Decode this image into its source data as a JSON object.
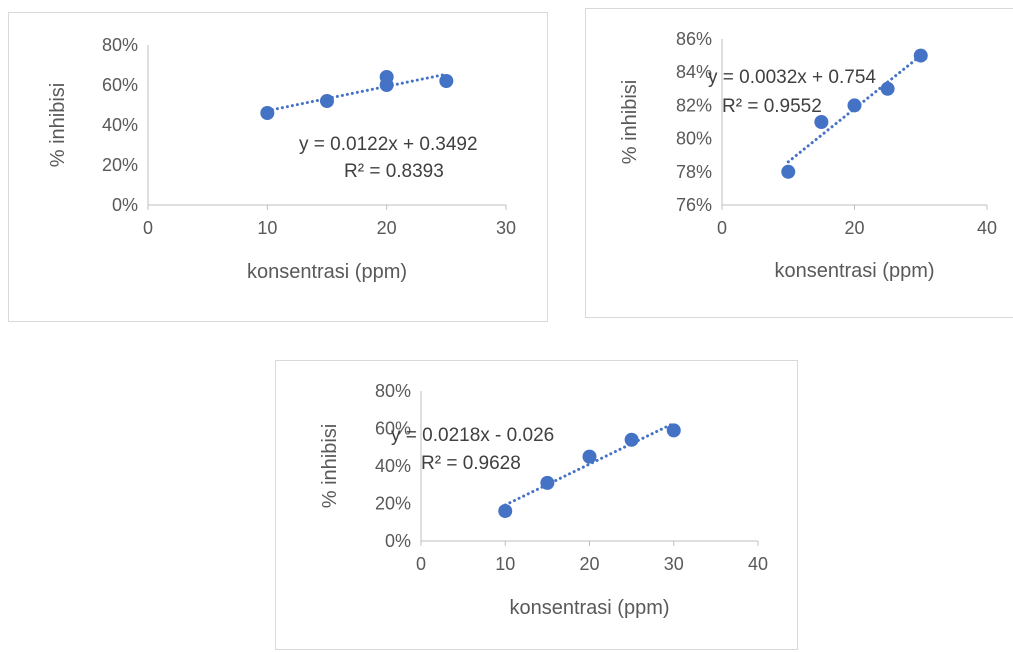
{
  "chart_data": [
    {
      "type": "scatter",
      "x": [
        10,
        15,
        20,
        20,
        25
      ],
      "y": [
        0.46,
        0.52,
        0.6,
        0.64,
        0.62
      ],
      "xlabel": "konsentrasi (ppm)",
      "ylabel": "% inhibisi",
      "xlim": [
        0,
        30
      ],
      "ylim": [
        0,
        0.8
      ],
      "xticks": [
        "0",
        "10",
        "20",
        "30"
      ],
      "yticks": [
        "0%",
        "20%",
        "40%",
        "60%",
        "80%"
      ],
      "trendline": {
        "type": "linear",
        "slope": 0.0122,
        "intercept": 0.3492,
        "x_from": 10,
        "x_to": 25,
        "style": "dotted"
      },
      "equation": "y = 0.0122x + 0.3492",
      "r_squared": "R² = 0.8393",
      "grid": false,
      "marker_color": "#4472c4"
    },
    {
      "type": "scatter",
      "x": [
        10,
        15,
        20,
        25,
        30
      ],
      "y": [
        0.78,
        0.81,
        0.82,
        0.83,
        0.85
      ],
      "xlabel": "konsentrasi (ppm)",
      "ylabel": "% inhibisi",
      "xlim": [
        0,
        40
      ],
      "ylim": [
        0.76,
        0.86
      ],
      "xticks": [
        "0",
        "20",
        "40"
      ],
      "yticks": [
        "76%",
        "78%",
        "80%",
        "82%",
        "84%",
        "86%"
      ],
      "trendline": {
        "type": "linear",
        "slope": 0.0032,
        "intercept": 0.754,
        "x_from": 10,
        "x_to": 30,
        "style": "dotted"
      },
      "equation": "y = 0.0032x + 0.754",
      "r_squared": "R² = 0.9552",
      "grid": false,
      "marker_color": "#4472c4"
    },
    {
      "type": "scatter",
      "x": [
        10,
        15,
        20,
        25,
        30
      ],
      "y": [
        0.16,
        0.31,
        0.45,
        0.54,
        0.59
      ],
      "xlabel": "konsentrasi (ppm)",
      "ylabel": "% inhibisi",
      "xlim": [
        0,
        40
      ],
      "ylim": [
        0,
        0.8
      ],
      "xticks": [
        "0",
        "10",
        "20",
        "30",
        "40"
      ],
      "yticks": [
        "0%",
        "20%",
        "40%",
        "60%",
        "80%"
      ],
      "trendline": {
        "type": "linear",
        "slope": 0.0218,
        "intercept": -0.026,
        "x_from": 10,
        "x_to": 30,
        "style": "dotted"
      },
      "equation": "y = 0.0218x - 0.026",
      "r_squared": "R² = 0.9628",
      "grid": false,
      "marker_color": "#4472c4"
    }
  ]
}
